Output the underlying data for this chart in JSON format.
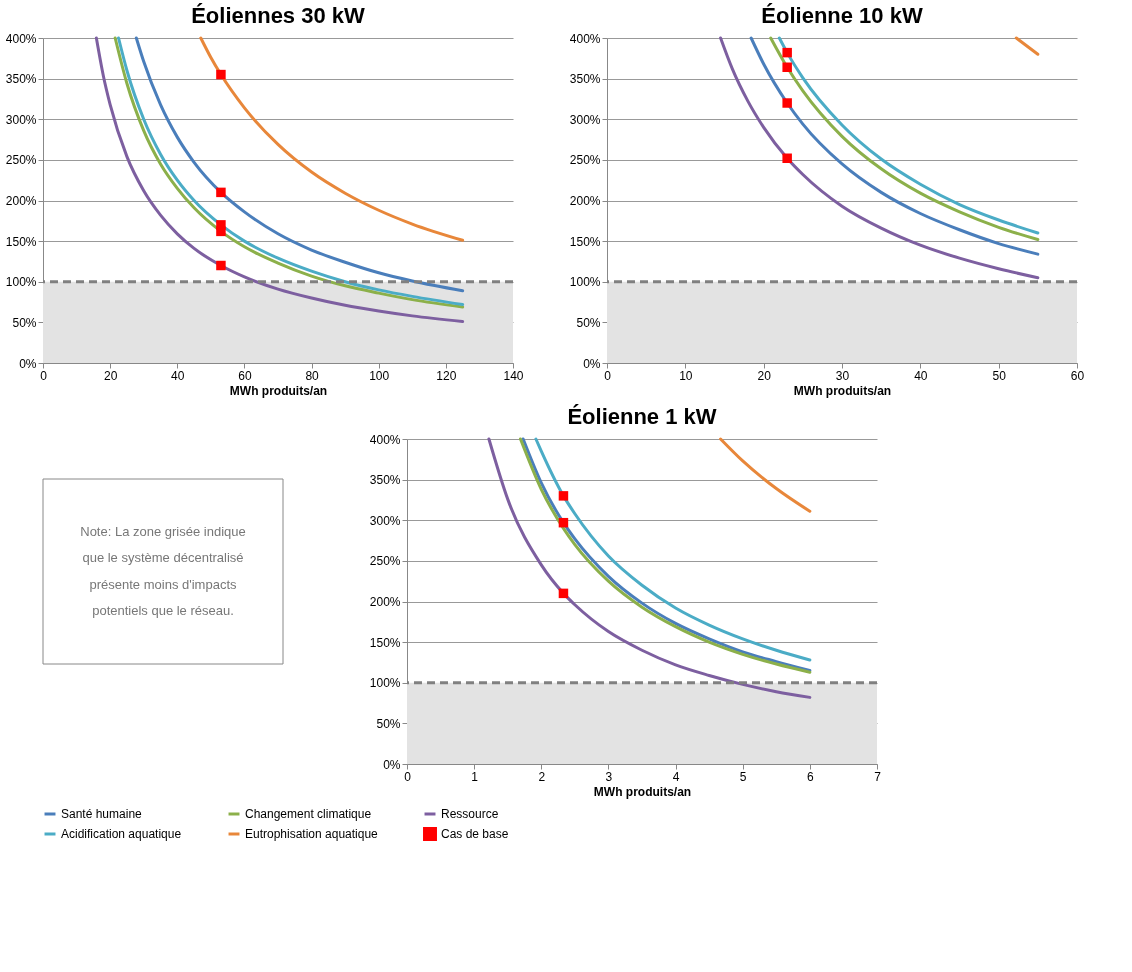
{
  "chart_data": [
    {
      "type": "line",
      "title": "Éoliennes 30 kW",
      "xlabel": "MWh produits/an",
      "xlim": [
        0,
        140
      ],
      "xticks": [
        0,
        20,
        40,
        60,
        80,
        100,
        120,
        140
      ],
      "ylim": [
        0,
        400
      ],
      "yticks": [
        {
          "value": 0,
          "label": "0%"
        },
        {
          "value": 50,
          "label": "50%"
        },
        {
          "value": 100,
          "label": "100%"
        },
        {
          "value": 150,
          "label": "150%"
        },
        {
          "value": 200,
          "label": "200%"
        },
        {
          "value": 250,
          "label": "250%"
        },
        {
          "value": 300,
          "label": "300%"
        },
        {
          "value": 350,
          "label": "350%"
        },
        {
          "value": 400,
          "label": "400%"
        }
      ],
      "grid": "y",
      "legend": "bottom",
      "bands": [
        {
          "axis": "y",
          "from": 0,
          "to": 100,
          "color": "#e3e3e3"
        }
      ],
      "ref_lines": [
        {
          "axis": "y",
          "value": 100,
          "color": "#808080",
          "line_style": "dashed"
        }
      ],
      "series": [
        {
          "name": "Santé humaine",
          "color": "#4a7ebb",
          "x": [
            27.8,
            30,
            35,
            40,
            45,
            53,
            60,
            70,
            80,
            90,
            100,
            110,
            125
          ],
          "values": [
            400,
            371,
            318,
            278,
            247,
            210,
            186,
            159,
            139,
            124,
            111,
            101,
            89
          ]
        },
        {
          "name": "Changement climatique",
          "color": "#8cb04a",
          "x": [
            21.5,
            25,
            30,
            35,
            40,
            45,
            53,
            60,
            70,
            80,
            90,
            100,
            110,
            125
          ],
          "values": [
            400,
            344,
            286,
            245,
            215,
            191,
            162,
            143,
            123,
            107,
            95,
            86,
            78,
            69
          ]
        },
        {
          "name": "Ressource",
          "color": "#7d5fa0",
          "x": [
            15.9,
            18,
            20,
            25,
            30,
            35,
            40,
            45,
            53,
            60,
            70,
            80,
            90,
            100,
            110,
            125
          ],
          "values": [
            400,
            353,
            318,
            254,
            212,
            182,
            159,
            141,
            120,
            106,
            91,
            80,
            71,
            64,
            58,
            51
          ]
        },
        {
          "name": "Acidification aquatique",
          "color": "#4bacc6",
          "x": [
            22.5,
            25,
            30,
            35,
            40,
            45,
            53,
            60,
            70,
            80,
            90,
            100,
            110,
            125
          ],
          "values": [
            400,
            360,
            300,
            257,
            225,
            200,
            170,
            150,
            129,
            113,
            100,
            90,
            82,
            72
          ]
        },
        {
          "name": "Eutrophisation aquatique",
          "color": "#e8873a",
          "x": [
            47,
            50,
            53,
            60,
            70,
            80,
            90,
            100,
            110,
            125
          ],
          "values": [
            400,
            376,
            355,
            314,
            269,
            235,
            209,
            188,
            171,
            151
          ]
        },
        {
          "name": "Cas de base",
          "type": "scatter",
          "marker": "square",
          "color": "#ff0000",
          "x": [
            53,
            53,
            53,
            53,
            53
          ],
          "values": [
            355,
            210,
            170,
            162,
            120
          ]
        }
      ]
    },
    {
      "type": "line",
      "title": "Éolienne 10 kW",
      "xlabel": "MWh produits/an",
      "xlim": [
        0,
        60
      ],
      "xticks": [
        0,
        10,
        20,
        30,
        40,
        50,
        60
      ],
      "ylim": [
        0,
        400
      ],
      "yticks": [
        {
          "value": 0,
          "label": "0%"
        },
        {
          "value": 50,
          "label": "50%"
        },
        {
          "value": 100,
          "label": "100%"
        },
        {
          "value": 150,
          "label": "150%"
        },
        {
          "value": 200,
          "label": "200%"
        },
        {
          "value": 250,
          "label": "250%"
        },
        {
          "value": 300,
          "label": "300%"
        },
        {
          "value": 350,
          "label": "350%"
        },
        {
          "value": 400,
          "label": "400%"
        }
      ],
      "grid": "y",
      "bands": [
        {
          "axis": "y",
          "from": 0,
          "to": 100,
          "color": "#e3e3e3"
        }
      ],
      "ref_lines": [
        {
          "axis": "y",
          "value": 100,
          "color": "#808080",
          "line_style": "dashed"
        }
      ],
      "series": [
        {
          "name": "Santé humaine",
          "color": "#4a7ebb",
          "x": [
            18.4,
            20,
            23,
            25,
            30,
            35,
            40,
            45,
            50,
            55
          ],
          "values": [
            400,
            368,
            320,
            294,
            245,
            210,
            184,
            164,
            147,
            134
          ]
        },
        {
          "name": "Changement climatique",
          "color": "#8cb04a",
          "x": [
            20.9,
            23,
            25,
            30,
            35,
            40,
            45,
            50,
            55
          ],
          "values": [
            400,
            364,
            335,
            279,
            239,
            209,
            186,
            167,
            152
          ]
        },
        {
          "name": "Ressource",
          "color": "#7d5fa0",
          "x": [
            14.5,
            16,
            18,
            20,
            23,
            25,
            30,
            35,
            40,
            45,
            50,
            55
          ],
          "values": [
            400,
            362,
            322,
            290,
            252,
            232,
            193,
            166,
            145,
            129,
            116,
            105
          ]
        },
        {
          "name": "Acidification aquatique",
          "color": "#4bacc6",
          "x": [
            22,
            23,
            25,
            30,
            35,
            40,
            45,
            50,
            55
          ],
          "values": [
            400,
            382,
            351,
            293,
            251,
            220,
            195,
            176,
            160
          ]
        },
        {
          "name": "Eutrophisation aquatique",
          "color": "#e8873a",
          "x": [
            52.25,
            55
          ],
          "values": [
            400,
            380
          ]
        },
        {
          "name": "Cas de base",
          "type": "scatter",
          "marker": "square",
          "color": "#ff0000",
          "x": [
            23,
            23,
            23,
            23
          ],
          "values": [
            382,
            364,
            320,
            252
          ]
        }
      ]
    },
    {
      "type": "other",
      "annotations": [
        "Note: La zone grisée indique que le système décentralisé présente moins d'impacts potentiels que le réseau."
      ]
    },
    {
      "type": "line",
      "title": "Éolienne 1 kW",
      "xlabel": "MWh produits/an",
      "xlim": [
        0,
        7
      ],
      "xticks": [
        0,
        1,
        2,
        3,
        4,
        5,
        6,
        7
      ],
      "ylim": [
        0,
        400
      ],
      "yticks": [
        {
          "value": 0,
          "label": "0%"
        },
        {
          "value": 50,
          "label": "50%"
        },
        {
          "value": 100,
          "label": "100%"
        },
        {
          "value": 150,
          "label": "150%"
        },
        {
          "value": 200,
          "label": "200%"
        },
        {
          "value": 250,
          "label": "250%"
        },
        {
          "value": 300,
          "label": "300%"
        },
        {
          "value": 350,
          "label": "350%"
        },
        {
          "value": 400,
          "label": "400%"
        }
      ],
      "grid": "y",
      "bands": [
        {
          "axis": "y",
          "from": 0,
          "to": 100,
          "color": "#e3e3e3"
        }
      ],
      "ref_lines": [
        {
          "axis": "y",
          "value": 100,
          "color": "#808080",
          "line_style": "dashed"
        }
      ],
      "series": [
        {
          "name": "Santé humaine",
          "color": "#4a7ebb",
          "x": [
            1.73,
            2,
            2.33,
            2.5,
            3,
            3.5,
            4,
            4.5,
            5,
            5.5,
            6
          ],
          "values": [
            400,
            346,
            297,
            277,
            231,
            198,
            173,
            154,
            138,
            126,
            115
          ]
        },
        {
          "name": "Changement climatique",
          "color": "#8cb04a",
          "x": [
            1.69,
            2,
            2.33,
            2.5,
            3,
            3.5,
            4,
            4.5,
            5,
            5.5,
            6
          ],
          "values": [
            400,
            338,
            290,
            270,
            225,
            193,
            169,
            150,
            135,
            123,
            113
          ]
        },
        {
          "name": "Ressource",
          "color": "#7d5fa0",
          "x": [
            1.22,
            1.5,
            2,
            2.33,
            2.5,
            3,
            3.5,
            4,
            4.5,
            5,
            5.5,
            6
          ],
          "values": [
            400,
            326,
            245,
            210,
            196,
            163,
            140,
            122,
            109,
            98,
            89,
            82
          ]
        },
        {
          "name": "Acidification aquatique",
          "color": "#4bacc6",
          "x": [
            1.92,
            2,
            2.33,
            2.5,
            3,
            3.5,
            4,
            4.5,
            5,
            5.5,
            6
          ],
          "values": [
            400,
            385,
            330,
            308,
            256,
            220,
            192,
            171,
            154,
            140,
            128
          ]
        },
        {
          "name": "Eutrophisation aquatique",
          "color": "#e8873a",
          "x": [
            4.67,
            5,
            5.5,
            6
          ],
          "values": [
            400,
            373,
            339,
            311
          ]
        },
        {
          "name": "Cas de base",
          "type": "scatter",
          "marker": "square",
          "color": "#ff0000",
          "x": [
            2.33,
            2.33,
            2.33
          ],
          "values": [
            330,
            297,
            210
          ]
        }
      ]
    }
  ]
}
